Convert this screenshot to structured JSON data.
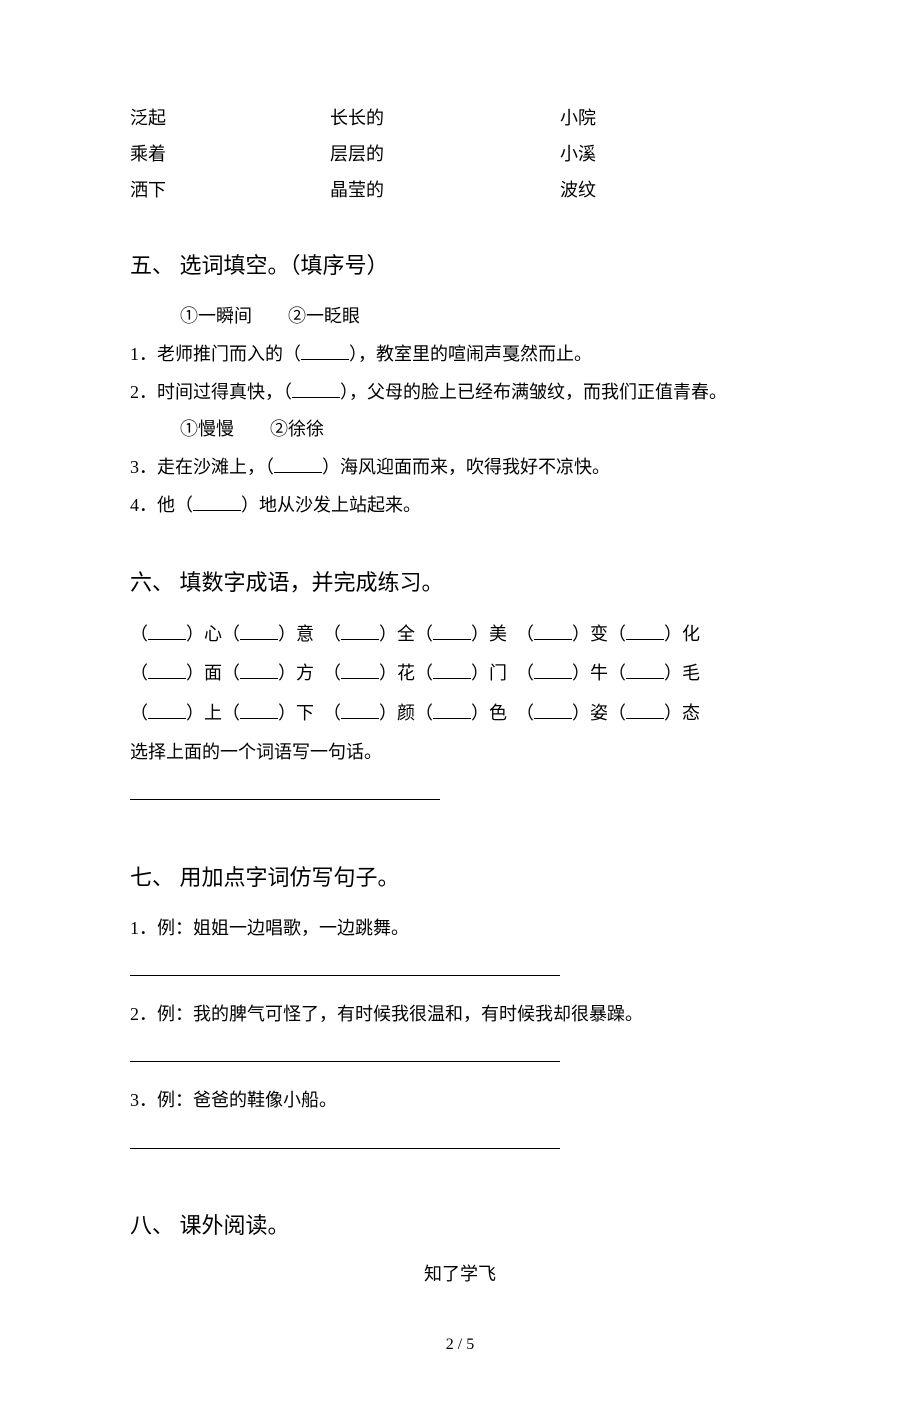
{
  "matching": {
    "rows": [
      {
        "c1": "泛起",
        "c2": "长长的",
        "c3": "小院"
      },
      {
        "c1": "乘着",
        "c2": "层层的",
        "c3": "小溪"
      },
      {
        "c1": "洒下",
        "c2": "晶莹的",
        "c3": "波纹"
      }
    ]
  },
  "section5": {
    "heading": "五、 选词填空。（填序号）",
    "group1_options": "①一瞬间　　②一眨眼",
    "q1": "1．老师推门而入的（",
    "q1b": "），教室里的喧闹声戛然而止。",
    "q2": "2．时间过得真快，（",
    "q2b": "），父母的脸上已经布满皱纹，而我们正值青春。",
    "group2_options": "①慢慢　　②徐徐",
    "q3": "3．走在沙滩上，（",
    "q3b": "）海风迎面而来，吹得我好不凉快。",
    "q4": "4．他（",
    "q4b": "）地从沙发上站起来。"
  },
  "section6": {
    "heading": "六、 填数字成语，并完成练习。",
    "rows": [
      [
        "）心（",
        "）意　（",
        "）全（",
        "）美　（",
        "）变（",
        "）化"
      ],
      [
        "）面（",
        "）方　（",
        "）花（",
        "）门　（",
        "）牛（",
        "）毛"
      ],
      [
        "）上（",
        "）下　（",
        "）颜（",
        "）色　（",
        "）姿（",
        "）态"
      ]
    ],
    "prompt": "选择上面的一个词语写一句话。"
  },
  "section7": {
    "heading": "七、 用加点字词仿写句子。",
    "q1": "1．例：姐姐一边唱歌，一边跳舞。",
    "q2": "2．例：我的脾气可怪了，有时候我很温和，有时候我却很暴躁。",
    "q3": "3．例：爸爸的鞋像小船。"
  },
  "section8": {
    "heading": "八、 课外阅读。",
    "title": "知了学飞"
  },
  "footer": "2 / 5",
  "colors": {
    "text": "#000000",
    "background": "#ffffff"
  }
}
